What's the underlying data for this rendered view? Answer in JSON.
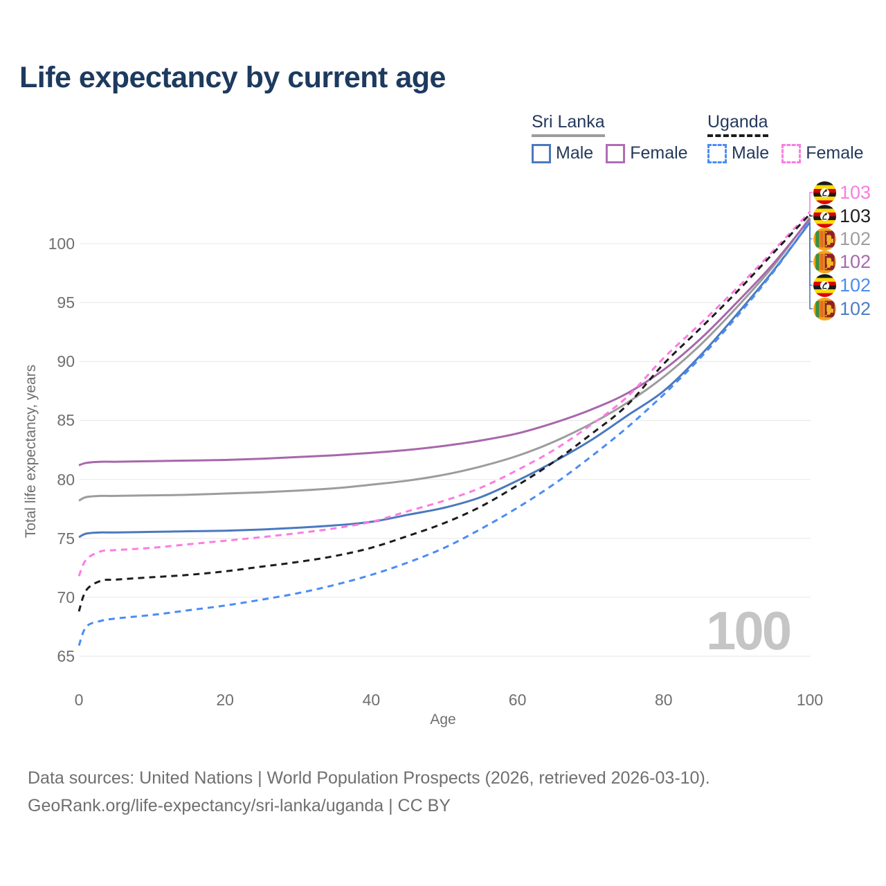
{
  "title": "Life expectancy by current age",
  "legend": {
    "groups": [
      {
        "name": "Sri Lanka",
        "underline": {
          "color": "#9c9c9c",
          "dashed": false
        },
        "items": [
          {
            "label": "Male",
            "color": "#4a79be",
            "dashed": false
          },
          {
            "label": "Female",
            "color": "#b16cb4",
            "dashed": false
          }
        ]
      },
      {
        "name": "Uganda",
        "underline": {
          "color": "#1c1c1c",
          "dashed": true
        },
        "items": [
          {
            "label": "Male",
            "color": "#4a8cf5",
            "dashed": true
          },
          {
            "label": "Female",
            "color": "#fb7ce1",
            "dashed": true
          }
        ]
      }
    ]
  },
  "y_axis": {
    "label": "Total life expectancy, years",
    "ticks": [
      100,
      95,
      90,
      85,
      80,
      75,
      70,
      65
    ]
  },
  "x_axis": {
    "label": "Age",
    "ticks": [
      0,
      20,
      40,
      60,
      80,
      100
    ]
  },
  "watermark": "100",
  "end_labels": [
    {
      "series": "uganda-female",
      "flag": "uganda",
      "value": "103",
      "color": "#fb7ce1"
    },
    {
      "series": "uganda-both",
      "flag": "uganda",
      "value": "103",
      "color": "#1f1f1f"
    },
    {
      "series": "sri-lanka-both",
      "flag": "sri-lanka",
      "value": "102",
      "color": "#9e9e9e"
    },
    {
      "series": "sri-lanka-female",
      "flag": "sri-lanka",
      "value": "102",
      "color": "#a869ad"
    },
    {
      "series": "uganda-male",
      "flag": "uganda",
      "value": "102",
      "color": "#4a8cf5"
    },
    {
      "series": "sri-lanka-male",
      "flag": "sri-lanka",
      "value": "102",
      "color": "#4f7dc4"
    }
  ],
  "footer": {
    "line1": "Data sources: United Nations | World Population Prospects (2026, retrieved 2026-03-10).",
    "line2": "GeoRank.org/life-expectancy/sri-lanka/uganda | CC BY"
  },
  "chart_data": {
    "type": "line",
    "title": "Life expectancy by current age",
    "xlabel": "Age",
    "ylabel": "Total life expectancy, years",
    "xlim": [
      0,
      100
    ],
    "ylim": [
      63.5,
      103.5
    ],
    "grid": "horizontal",
    "legend_position": "top-right",
    "x": [
      0,
      1,
      3,
      5,
      10,
      15,
      20,
      25,
      30,
      35,
      40,
      45,
      50,
      55,
      60,
      65,
      70,
      75,
      80,
      85,
      90,
      95,
      100
    ],
    "series": [
      {
        "key": "sri-lanka-both",
        "name": "Sri Lanka (both sexes)",
        "color": "#9c9c9c",
        "dashed": false,
        "values": [
          78.2,
          78.5,
          78.6,
          78.6,
          78.65,
          78.7,
          78.8,
          78.9,
          79.05,
          79.25,
          79.55,
          79.9,
          80.4,
          81.1,
          82.0,
          83.2,
          84.7,
          86.5,
          88.7,
          91.4,
          94.6,
          98.1,
          102.2
        ]
      },
      {
        "key": "sri-lanka-female",
        "name": "Sri Lanka Female",
        "color": "#a767ab",
        "dashed": false,
        "values": [
          81.2,
          81.4,
          81.5,
          81.5,
          81.55,
          81.6,
          81.65,
          81.75,
          81.9,
          82.05,
          82.25,
          82.5,
          82.85,
          83.3,
          83.9,
          84.8,
          85.9,
          87.3,
          89.3,
          91.9,
          95.0,
          98.3,
          102.1
        ]
      },
      {
        "key": "sri-lanka-male",
        "name": "Sri Lanka Male",
        "color": "#4a79be",
        "dashed": false,
        "values": [
          75.1,
          75.4,
          75.5,
          75.5,
          75.55,
          75.6,
          75.65,
          75.75,
          75.9,
          76.1,
          76.4,
          77.0,
          77.6,
          78.5,
          79.9,
          81.5,
          83.3,
          85.4,
          87.5,
          90.5,
          94.0,
          97.7,
          101.8
        ]
      },
      {
        "key": "uganda-female",
        "name": "Uganda Female",
        "color": "#fb7ce1",
        "dashed": true,
        "values": [
          71.8,
          73.2,
          73.9,
          74.0,
          74.2,
          74.5,
          74.8,
          75.1,
          75.45,
          75.85,
          76.4,
          77.3,
          78.2,
          79.3,
          80.8,
          82.5,
          84.6,
          87.0,
          90.3,
          93.2,
          96.2,
          99.4,
          102.7
        ]
      },
      {
        "key": "uganda-both",
        "name": "Uganda (both sexes)",
        "color": "#1c1c1c",
        "dashed": true,
        "values": [
          68.8,
          70.6,
          71.4,
          71.5,
          71.7,
          71.9,
          72.2,
          72.6,
          73.0,
          73.5,
          74.2,
          75.2,
          76.3,
          77.7,
          79.5,
          81.5,
          83.8,
          86.3,
          89.8,
          92.8,
          95.9,
          99.2,
          102.5
        ]
      },
      {
        "key": "uganda-male",
        "name": "Uganda Male",
        "color": "#4a8cf5",
        "dashed": true,
        "values": [
          65.9,
          67.5,
          68.0,
          68.2,
          68.5,
          68.9,
          69.3,
          69.8,
          70.35,
          71.05,
          71.9,
          72.95,
          74.2,
          75.8,
          77.6,
          79.6,
          81.9,
          84.4,
          87.2,
          90.3,
          93.8,
          97.6,
          101.9
        ]
      }
    ]
  }
}
